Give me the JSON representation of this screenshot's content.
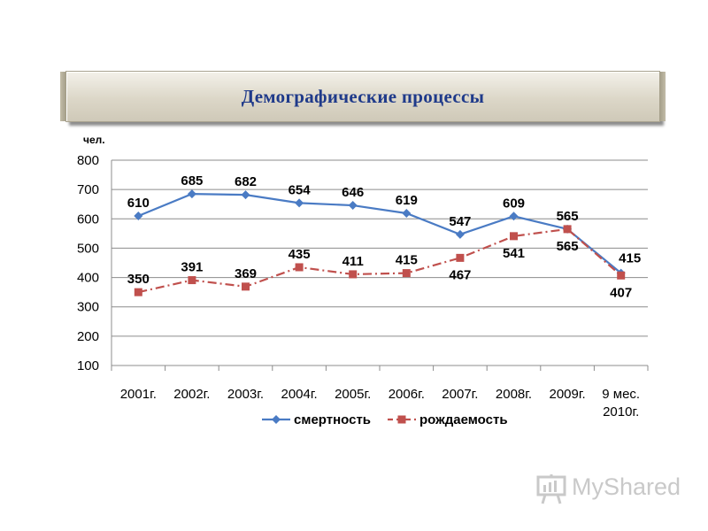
{
  "title": "Демографические процессы",
  "chart_data": {
    "type": "line",
    "unit_label": "чел.",
    "categories": [
      "2001г.",
      "2002г.",
      "2003г.",
      "2004г.",
      "2005г.",
      "2006г.",
      "2007г.",
      "2008г.",
      "2009г.",
      "9 мес. 2010г."
    ],
    "category_lines": [
      [
        "2001г."
      ],
      [
        "2002г."
      ],
      [
        "2003г."
      ],
      [
        "2004г."
      ],
      [
        "2005г."
      ],
      [
        "2006г."
      ],
      [
        "2007г."
      ],
      [
        "2008г."
      ],
      [
        "2009г."
      ],
      [
        "9 мес.",
        "2010г."
      ]
    ],
    "yticks": [
      100,
      200,
      300,
      400,
      500,
      600,
      700,
      800
    ],
    "ylim": [
      100,
      800
    ],
    "grid": true,
    "legend_position": "bottom",
    "series": [
      {
        "name": "смертность",
        "color": "#4a7bc4",
        "marker": "diamond",
        "line_style": "solid",
        "values": [
          610,
          685,
          682,
          654,
          646,
          619,
          547,
          609,
          565,
          415
        ],
        "label_position": [
          "above",
          "above",
          "above",
          "above",
          "above",
          "above",
          "above",
          "above",
          "above",
          "above-right"
        ]
      },
      {
        "name": "рождаемость",
        "color": "#c0504d",
        "marker": "square",
        "line_style": "dash-dot",
        "values": [
          350,
          391,
          369,
          435,
          411,
          415,
          467,
          541,
          565,
          407
        ],
        "label_position": [
          "above",
          "above",
          "above",
          "above",
          "above",
          "above",
          "below",
          "below",
          "below",
          "below"
        ]
      }
    ]
  },
  "watermark": {
    "text": "MyShared",
    "icon": "presentation-board-icon"
  }
}
